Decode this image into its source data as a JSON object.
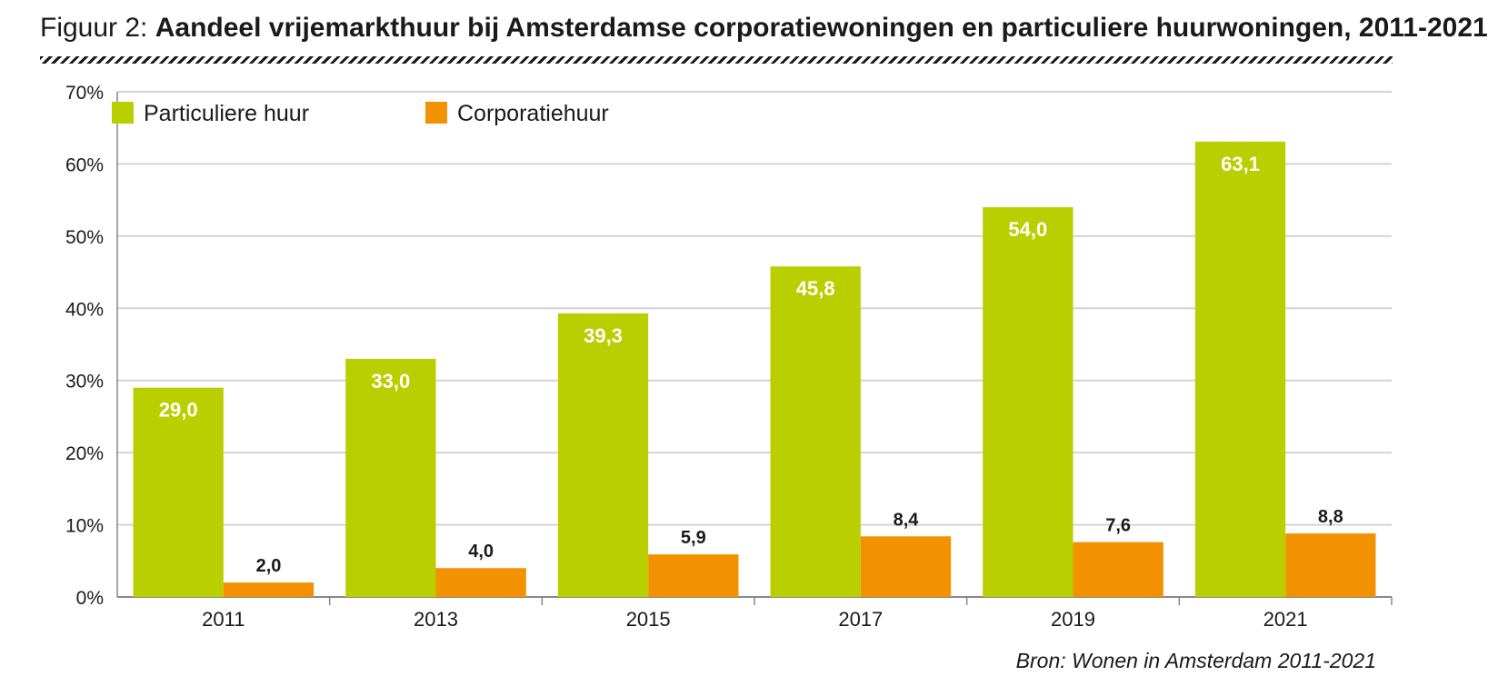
{
  "title": {
    "prefix": "Figuur 2:",
    "main": "Aandeel vrijemarkthuur bij Amsterdamse corporatiewoningen en particuliere huurwoningen, 2011-2021"
  },
  "source": "Bron: Wonen in Amsterdam 2011-2021",
  "colors": {
    "particulier": "#b9cf00",
    "corporatie": "#f39200",
    "grid": "#d4d4d4",
    "axis": "#888888"
  },
  "chart_data": {
    "type": "bar",
    "categories": [
      "2011",
      "2013",
      "2015",
      "2017",
      "2019",
      "2021"
    ],
    "series": [
      {
        "name": "Particuliere huur",
        "values": [
          29.0,
          33.0,
          39.3,
          45.8,
          54.0,
          63.1
        ],
        "labels": [
          "29,0",
          "33,0",
          "39,3",
          "45,8",
          "54,0",
          "63,1"
        ]
      },
      {
        "name": "Corporatiehuur",
        "values": [
          2.0,
          4.0,
          5.9,
          8.4,
          7.6,
          8.8
        ],
        "labels": [
          "2,0",
          "4,0",
          "5,9",
          "8,4",
          "7,6",
          "8,8"
        ]
      }
    ],
    "ylim": [
      0,
      70
    ],
    "yticks": [
      0,
      10,
      20,
      30,
      40,
      50,
      60,
      70
    ],
    "ytick_labels": [
      "0%",
      "10%",
      "20%",
      "30%",
      "40%",
      "50%",
      "60%",
      "70%"
    ],
    "grid": true,
    "legend_position": "top-left"
  }
}
